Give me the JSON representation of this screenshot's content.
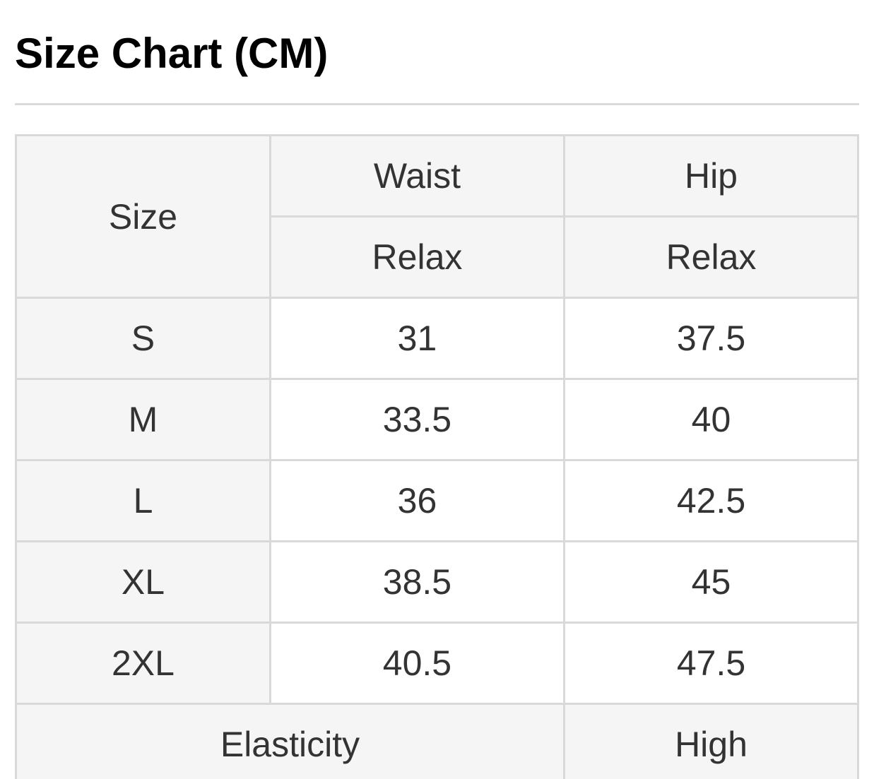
{
  "header": {
    "title": "Size Chart (CM)"
  },
  "table": {
    "header": {
      "size_label": "Size",
      "measures": [
        {
          "label": "Waist",
          "fit": "Relax"
        },
        {
          "label": "Hip",
          "fit": "Relax"
        }
      ]
    },
    "rows": [
      {
        "size": "S",
        "waist": "31",
        "hip": "37.5"
      },
      {
        "size": "M",
        "waist": "33.5",
        "hip": "40"
      },
      {
        "size": "L",
        "waist": "36",
        "hip": "42.5"
      },
      {
        "size": "XL",
        "waist": "38.5",
        "hip": "45"
      },
      {
        "size": "2XL",
        "waist": "40.5",
        "hip": "47.5"
      }
    ],
    "footer": {
      "label": "Elasticity",
      "value": "High"
    }
  },
  "colors": {
    "title_text": "#000000",
    "table_text": "#333333",
    "shaded_cell_bg": "#f5f5f6",
    "plain_cell_bg": "#ffffff",
    "border": "#d9d9d9",
    "divider": "#dadada"
  }
}
